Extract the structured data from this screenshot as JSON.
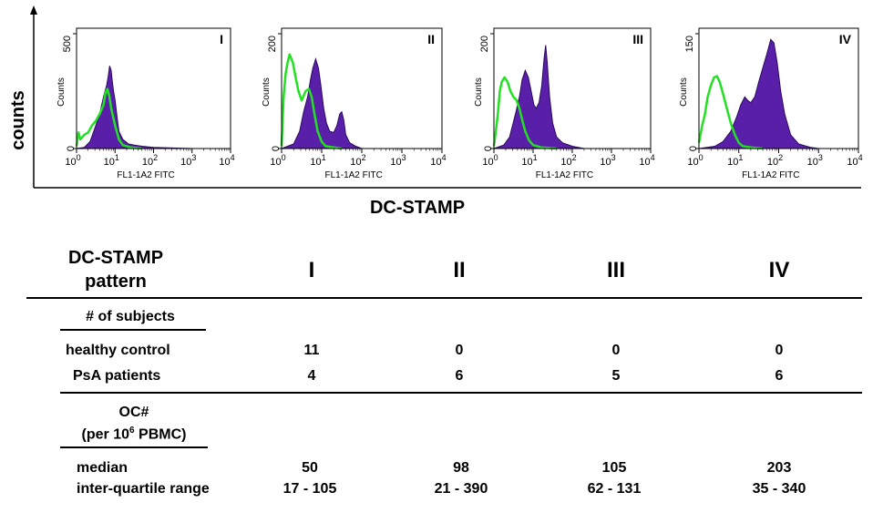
{
  "chart_data": {
    "type": "histogram-overlay",
    "y_axis_label": "counts",
    "x_axis_label": "DC-STAMP",
    "panel_y_label": "Counts",
    "panel_x_label": "FL1-1A2 FITC",
    "x_scale": "log",
    "x_ticks": [
      "10^0",
      "10^1",
      "10^2",
      "10^3",
      "10^4"
    ],
    "panels": [
      {
        "label": "I",
        "ymax": "500",
        "filled": [
          [
            0,
            0
          ],
          [
            0.2,
            0.01
          ],
          [
            0.35,
            0.06
          ],
          [
            0.5,
            0.2
          ],
          [
            0.6,
            0.3
          ],
          [
            0.7,
            0.45
          ],
          [
            0.78,
            0.55
          ],
          [
            0.82,
            0.62
          ],
          [
            0.86,
            0.72
          ],
          [
            0.9,
            0.68
          ],
          [
            0.93,
            0.58
          ],
          [
            0.96,
            0.5
          ],
          [
            1.0,
            0.42
          ],
          [
            1.05,
            0.28
          ],
          [
            1.1,
            0.15
          ],
          [
            1.2,
            0.08
          ],
          [
            1.35,
            0.04
          ],
          [
            1.5,
            0.03
          ],
          [
            1.7,
            0.02
          ],
          [
            2.0,
            0.01
          ],
          [
            2.5,
            0.005
          ],
          [
            3.0,
            0
          ]
        ],
        "outline": [
          [
            0,
            0.02
          ],
          [
            0.05,
            0.14
          ],
          [
            0.1,
            0.08
          ],
          [
            0.2,
            0.12
          ],
          [
            0.3,
            0.14
          ],
          [
            0.4,
            0.2
          ],
          [
            0.5,
            0.24
          ],
          [
            0.6,
            0.3
          ],
          [
            0.7,
            0.38
          ],
          [
            0.75,
            0.48
          ],
          [
            0.8,
            0.52
          ],
          [
            0.85,
            0.46
          ],
          [
            0.9,
            0.35
          ],
          [
            1.0,
            0.2
          ],
          [
            1.1,
            0.08
          ],
          [
            1.2,
            0.03
          ],
          [
            1.4,
            0.01
          ],
          [
            1.7,
            0
          ]
        ]
      },
      {
        "label": "II",
        "ymax": "200",
        "filled": [
          [
            0,
            0
          ],
          [
            0.3,
            0.04
          ],
          [
            0.45,
            0.15
          ],
          [
            0.55,
            0.32
          ],
          [
            0.65,
            0.45
          ],
          [
            0.72,
            0.6
          ],
          [
            0.78,
            0.7
          ],
          [
            0.85,
            0.78
          ],
          [
            0.92,
            0.7
          ],
          [
            0.98,
            0.55
          ],
          [
            1.05,
            0.35
          ],
          [
            1.12,
            0.22
          ],
          [
            1.2,
            0.15
          ],
          [
            1.3,
            0.14
          ],
          [
            1.38,
            0.2
          ],
          [
            1.45,
            0.3
          ],
          [
            1.5,
            0.32
          ],
          [
            1.55,
            0.25
          ],
          [
            1.6,
            0.12
          ],
          [
            1.7,
            0.05
          ],
          [
            1.85,
            0.02
          ],
          [
            2.0,
            0
          ]
        ],
        "outline": [
          [
            0,
            0.02
          ],
          [
            0.05,
            0.45
          ],
          [
            0.1,
            0.65
          ],
          [
            0.15,
            0.75
          ],
          [
            0.2,
            0.82
          ],
          [
            0.28,
            0.75
          ],
          [
            0.35,
            0.62
          ],
          [
            0.42,
            0.5
          ],
          [
            0.5,
            0.42
          ],
          [
            0.6,
            0.5
          ],
          [
            0.68,
            0.52
          ],
          [
            0.75,
            0.45
          ],
          [
            0.82,
            0.3
          ],
          [
            0.9,
            0.15
          ],
          [
            1.0,
            0.06
          ],
          [
            1.1,
            0.02
          ],
          [
            1.3,
            0.01
          ],
          [
            1.5,
            0
          ]
        ]
      },
      {
        "label": "III",
        "ymax": "200",
        "filled": [
          [
            0,
            0
          ],
          [
            0.25,
            0.03
          ],
          [
            0.4,
            0.1
          ],
          [
            0.55,
            0.3
          ],
          [
            0.65,
            0.45
          ],
          [
            0.72,
            0.6
          ],
          [
            0.8,
            0.68
          ],
          [
            0.88,
            0.62
          ],
          [
            0.95,
            0.5
          ],
          [
            1.02,
            0.38
          ],
          [
            1.08,
            0.35
          ],
          [
            1.15,
            0.4
          ],
          [
            1.22,
            0.55
          ],
          [
            1.28,
            0.78
          ],
          [
            1.32,
            0.9
          ],
          [
            1.36,
            0.75
          ],
          [
            1.42,
            0.45
          ],
          [
            1.5,
            0.22
          ],
          [
            1.6,
            0.1
          ],
          [
            1.75,
            0.05
          ],
          [
            2.0,
            0.02
          ],
          [
            2.3,
            0
          ]
        ],
        "outline": [
          [
            0,
            0.02
          ],
          [
            0.05,
            0.15
          ],
          [
            0.1,
            0.3
          ],
          [
            0.15,
            0.5
          ],
          [
            0.2,
            0.58
          ],
          [
            0.27,
            0.62
          ],
          [
            0.35,
            0.58
          ],
          [
            0.42,
            0.5
          ],
          [
            0.5,
            0.45
          ],
          [
            0.58,
            0.42
          ],
          [
            0.65,
            0.35
          ],
          [
            0.72,
            0.25
          ],
          [
            0.8,
            0.15
          ],
          [
            0.9,
            0.07
          ],
          [
            1.0,
            0.03
          ],
          [
            1.2,
            0.01
          ],
          [
            1.6,
            0
          ]
        ]
      },
      {
        "label": "IV",
        "ymax": "150",
        "filled": [
          [
            0,
            0
          ],
          [
            0.4,
            0.02
          ],
          [
            0.6,
            0.06
          ],
          [
            0.8,
            0.15
          ],
          [
            0.95,
            0.28
          ],
          [
            1.05,
            0.38
          ],
          [
            1.15,
            0.45
          ],
          [
            1.22,
            0.42
          ],
          [
            1.3,
            0.4
          ],
          [
            1.4,
            0.45
          ],
          [
            1.5,
            0.58
          ],
          [
            1.6,
            0.7
          ],
          [
            1.7,
            0.82
          ],
          [
            1.8,
            0.95
          ],
          [
            1.88,
            0.92
          ],
          [
            1.96,
            0.75
          ],
          [
            2.05,
            0.5
          ],
          [
            2.15,
            0.3
          ],
          [
            2.3,
            0.12
          ],
          [
            2.5,
            0.04
          ],
          [
            2.8,
            0.01
          ],
          [
            3.0,
            0
          ]
        ],
        "outline": [
          [
            0,
            0.05
          ],
          [
            0.08,
            0.2
          ],
          [
            0.15,
            0.3
          ],
          [
            0.22,
            0.45
          ],
          [
            0.3,
            0.55
          ],
          [
            0.38,
            0.62
          ],
          [
            0.45,
            0.63
          ],
          [
            0.52,
            0.58
          ],
          [
            0.6,
            0.48
          ],
          [
            0.7,
            0.35
          ],
          [
            0.8,
            0.22
          ],
          [
            0.9,
            0.12
          ],
          [
            1.0,
            0.05
          ],
          [
            1.1,
            0.02
          ],
          [
            1.3,
            0.01
          ],
          [
            1.6,
            0
          ]
        ]
      }
    ],
    "colors": {
      "filled": "#5a1fa8",
      "filled_edge": "#2a0a60",
      "outline": "#22e022"
    }
  },
  "table": {
    "header": {
      "line1": "DC-STAMP",
      "line2": "pattern"
    },
    "columns": [
      "I",
      "II",
      "III",
      "IV"
    ],
    "subjects_heading": "# of subjects",
    "rows": [
      {
        "label": "healthy control",
        "values": [
          "11",
          "0",
          "0",
          "0"
        ]
      },
      {
        "label": "PsA patients",
        "values": [
          "4",
          "6",
          "5",
          "6"
        ]
      }
    ],
    "oc_heading": {
      "line1": "OC#",
      "line2_pre": "(per 10",
      "line2_sup": "6",
      "line2_post": " PBMC)"
    },
    "median_label": "median",
    "iqr_label": "inter-quartile range",
    "median": [
      "50",
      "98",
      "105",
      "203"
    ],
    "iqr": [
      "17 - 105",
      "21 - 390",
      "62 - 131",
      "35 - 340"
    ]
  }
}
